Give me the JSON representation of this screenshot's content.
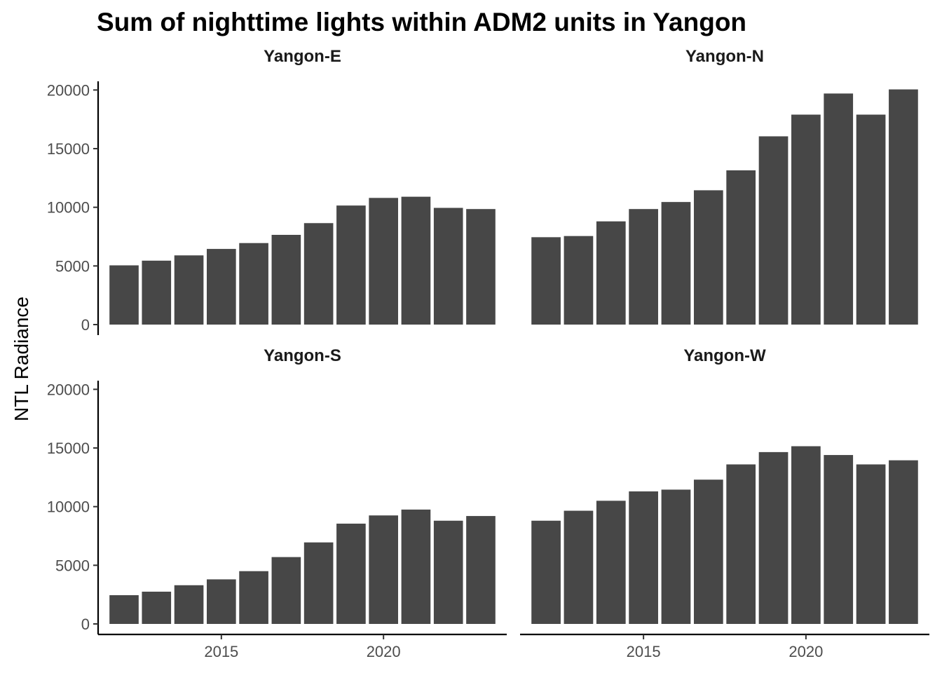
{
  "chart_data": {
    "type": "bar",
    "title": "Sum of nighttime lights within ADM2 units in Yangon",
    "xlabel": "",
    "ylabel": "NTL Radiance",
    "x": [
      2012,
      2013,
      2014,
      2015,
      2016,
      2017,
      2018,
      2019,
      2020,
      2021,
      2022,
      2023
    ],
    "xlim": [
      2011.2,
      2023.8
    ],
    "ylim": [
      0,
      20500
    ],
    "x_ticks": [
      "2015",
      "2020"
    ],
    "y_ticks": [
      "0",
      "5000",
      "10000",
      "15000",
      "20000"
    ],
    "grid": false,
    "bar_color": "#474747",
    "facets": [
      {
        "name": "Yangon-E",
        "values": [
          5050,
          5450,
          5900,
          6450,
          6950,
          7650,
          8650,
          10150,
          10800,
          10900,
          9950,
          9850
        ]
      },
      {
        "name": "Yangon-N",
        "values": [
          7450,
          7550,
          8800,
          9850,
          10450,
          11450,
          13150,
          16050,
          17900,
          19700,
          17900,
          20050
        ]
      },
      {
        "name": "Yangon-S",
        "values": [
          2450,
          2750,
          3300,
          3800,
          4500,
          5700,
          6950,
          8550,
          9250,
          9750,
          8800,
          9200
        ]
      },
      {
        "name": "Yangon-W",
        "values": [
          8800,
          9650,
          10500,
          11300,
          11450,
          12300,
          13600,
          14650,
          15150,
          14400,
          13600,
          13950
        ]
      }
    ]
  }
}
